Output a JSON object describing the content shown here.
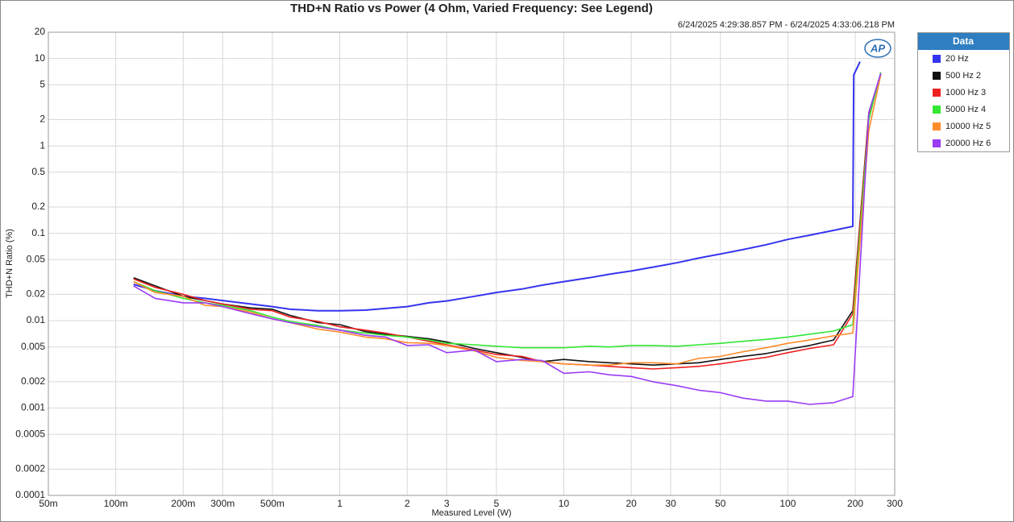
{
  "chart_data": {
    "type": "line",
    "title": "THD+N Ratio vs Power (4 Ohm, Varied Frequency: See Legend)",
    "subtitle": "6/24/2025 4:29:38.857 PM - 6/24/2025 4:33:06.218 PM",
    "x_label": "Measured Level (W)",
    "y_label": "THD+N Ratio (%)",
    "logo": "AP",
    "legend_title": "Data",
    "legend_position": "right",
    "xscale": "log",
    "yscale": "log",
    "grid": true,
    "xlim": [
      0.05,
      300
    ],
    "xticks": [
      {
        "value": 0.05,
        "label": "50m"
      },
      {
        "value": 0.1,
        "label": "100m"
      },
      {
        "value": 0.2,
        "label": "200m"
      },
      {
        "value": 0.3,
        "label": "300m"
      },
      {
        "value": 0.5,
        "label": "500m"
      },
      1,
      2,
      3,
      5,
      10,
      20,
      30,
      50,
      100,
      200,
      300
    ],
    "ylim": [
      0.0001,
      20
    ],
    "yticks": [
      20,
      10,
      5,
      2,
      1,
      0.5,
      0.2,
      0.1,
      0.05,
      0.02,
      0.01,
      0.005,
      0.002,
      0.001,
      0.0005,
      0.0002,
      0.0001
    ],
    "series": [
      {
        "name": "20 Hz",
        "color": "#3434f0",
        "x": [
          0.12,
          0.15,
          0.2,
          0.25,
          0.3,
          0.4,
          0.5,
          0.6,
          0.8,
          1,
          1.3,
          1.6,
          2,
          2.5,
          3,
          4,
          5,
          6.5,
          8,
          10,
          13,
          16,
          20,
          25,
          32,
          40,
          50,
          63,
          80,
          100,
          125,
          160,
          195,
          197,
          210
        ],
        "values": [
          0.026,
          0.022,
          0.019,
          0.018,
          0.017,
          0.0155,
          0.0145,
          0.0135,
          0.013,
          0.013,
          0.0132,
          0.0138,
          0.0145,
          0.016,
          0.0168,
          0.019,
          0.021,
          0.023,
          0.0255,
          0.028,
          0.031,
          0.034,
          0.037,
          0.041,
          0.046,
          0.052,
          0.058,
          0.065,
          0.074,
          0.085,
          0.095,
          0.108,
          0.12,
          6.5,
          9.2
        ]
      },
      {
        "name": "500 Hz 2",
        "color": "#111111",
        "x": [
          0.12,
          0.15,
          0.2,
          0.25,
          0.3,
          0.4,
          0.5,
          0.6,
          0.8,
          1,
          1.3,
          1.6,
          2,
          2.5,
          3,
          4,
          5,
          6.5,
          8,
          10,
          13,
          16,
          20,
          25,
          32,
          40,
          50,
          63,
          80,
          100,
          125,
          160,
          195,
          230,
          260
        ],
        "values": [
          0.031,
          0.025,
          0.019,
          0.017,
          0.0155,
          0.014,
          0.0135,
          0.0115,
          0.0095,
          0.009,
          0.0075,
          0.007,
          0.0066,
          0.0062,
          0.0057,
          0.0048,
          0.0043,
          0.0038,
          0.0034,
          0.0036,
          0.0034,
          0.0033,
          0.0032,
          0.0031,
          0.0032,
          0.0033,
          0.0036,
          0.0039,
          0.0042,
          0.0047,
          0.0052,
          0.006,
          0.013,
          2.4,
          6.7
        ]
      },
      {
        "name": "1000 Hz 3",
        "color": "#ee2020",
        "x": [
          0.12,
          0.15,
          0.2,
          0.25,
          0.3,
          0.4,
          0.5,
          0.6,
          0.8,
          1,
          1.3,
          1.6,
          2,
          2.5,
          3,
          4,
          5,
          6.5,
          8,
          10,
          13,
          16,
          20,
          25,
          32,
          40,
          50,
          63,
          80,
          100,
          125,
          160,
          195,
          230,
          260
        ],
        "values": [
          0.03,
          0.024,
          0.02,
          0.017,
          0.0155,
          0.0135,
          0.013,
          0.011,
          0.0098,
          0.0085,
          0.0078,
          0.0072,
          0.0065,
          0.0058,
          0.0053,
          0.0046,
          0.0041,
          0.0039,
          0.0034,
          0.0032,
          0.0031,
          0.003,
          0.0029,
          0.0028,
          0.0029,
          0.003,
          0.0032,
          0.0035,
          0.0038,
          0.0043,
          0.0048,
          0.0053,
          0.012,
          2.3,
          6.6
        ]
      },
      {
        "name": "5000 Hz 4",
        "color": "#33e633",
        "x": [
          0.12,
          0.15,
          0.2,
          0.25,
          0.3,
          0.4,
          0.5,
          0.6,
          0.8,
          1,
          1.3,
          1.6,
          2,
          2.5,
          3,
          4,
          5,
          6.5,
          8,
          10,
          13,
          16,
          20,
          25,
          32,
          40,
          50,
          63,
          80,
          100,
          125,
          160,
          195,
          230,
          260
        ],
        "values": [
          0.028,
          0.022,
          0.018,
          0.016,
          0.015,
          0.013,
          0.011,
          0.0098,
          0.0088,
          0.0078,
          0.0072,
          0.0068,
          0.0065,
          0.006,
          0.0055,
          0.0053,
          0.0051,
          0.0049,
          0.0049,
          0.0049,
          0.0051,
          0.005,
          0.0052,
          0.0052,
          0.0051,
          0.0053,
          0.0055,
          0.0058,
          0.0061,
          0.0065,
          0.007,
          0.0076,
          0.009,
          2.0,
          7.0
        ]
      },
      {
        "name": "10000 Hz 5",
        "color": "#ff8c2a",
        "x": [
          0.12,
          0.15,
          0.2,
          0.25,
          0.3,
          0.4,
          0.5,
          0.6,
          0.8,
          1,
          1.3,
          1.6,
          2,
          2.5,
          3,
          4,
          5,
          6.5,
          8,
          10,
          13,
          16,
          20,
          25,
          32,
          40,
          50,
          63,
          80,
          100,
          125,
          160,
          195,
          230,
          260
        ],
        "values": [
          0.028,
          0.021,
          0.019,
          0.015,
          0.0145,
          0.0125,
          0.0105,
          0.0095,
          0.008,
          0.0074,
          0.0065,
          0.0062,
          0.0056,
          0.0055,
          0.0052,
          0.0045,
          0.0038,
          0.0035,
          0.0034,
          0.0032,
          0.0031,
          0.0031,
          0.0033,
          0.0033,
          0.0032,
          0.0037,
          0.0039,
          0.0044,
          0.0049,
          0.0055,
          0.006,
          0.0067,
          0.0072,
          1.5,
          6.5
        ]
      },
      {
        "name": "20000 Hz 6",
        "color": "#9a3cf5",
        "x": [
          0.12,
          0.15,
          0.2,
          0.25,
          0.3,
          0.4,
          0.5,
          0.6,
          0.8,
          1,
          1.3,
          1.6,
          2,
          2.5,
          3,
          4,
          5,
          6.5,
          8,
          10,
          13,
          16,
          20,
          25,
          32,
          40,
          50,
          63,
          80,
          100,
          125,
          160,
          195,
          230,
          260
        ],
        "values": [
          0.025,
          0.018,
          0.016,
          0.016,
          0.0145,
          0.012,
          0.0105,
          0.0095,
          0.0085,
          0.0078,
          0.0068,
          0.0065,
          0.0052,
          0.0053,
          0.0043,
          0.0046,
          0.0034,
          0.0036,
          0.0035,
          0.0025,
          0.0026,
          0.0024,
          0.0023,
          0.002,
          0.0018,
          0.0016,
          0.0015,
          0.0013,
          0.0012,
          0.0012,
          0.0011,
          0.00115,
          0.00135,
          2.4,
          6.8
        ]
      }
    ]
  }
}
